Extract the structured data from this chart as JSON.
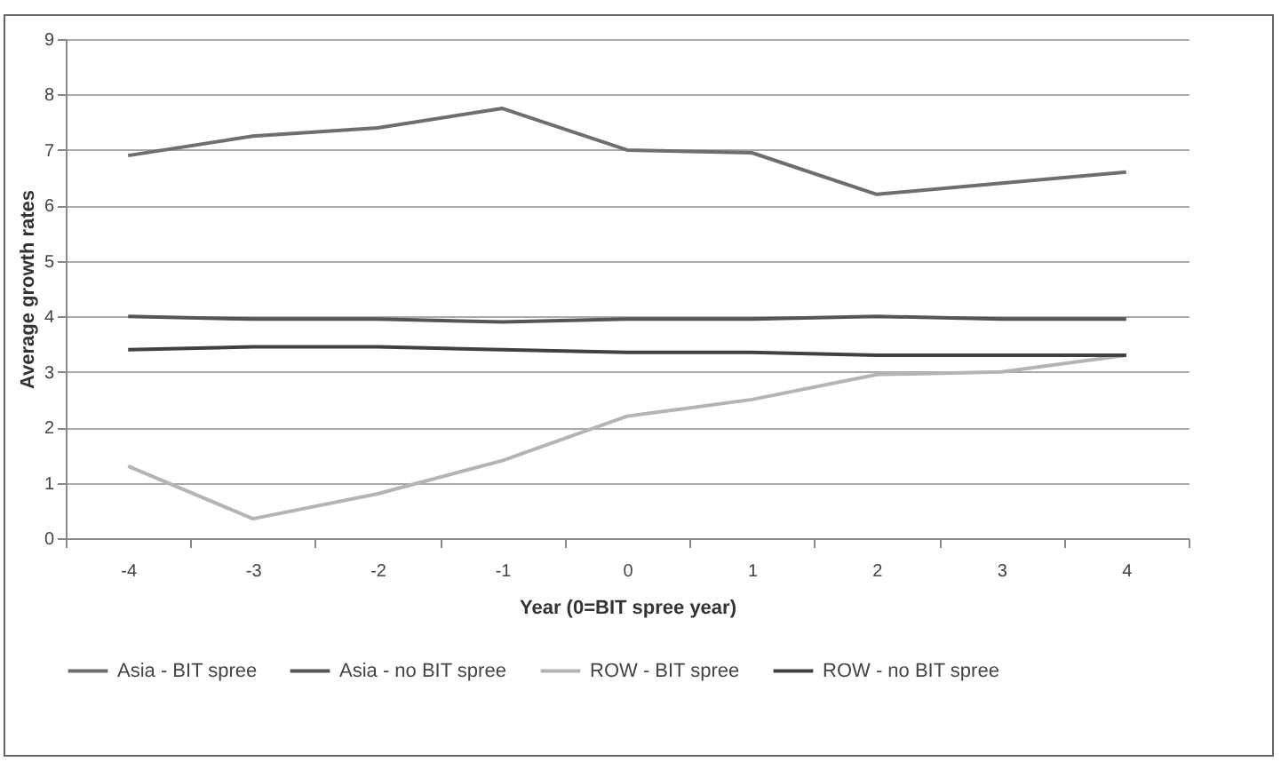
{
  "chart_data": {
    "type": "line",
    "xlabel": "Year (0=BIT spree year)",
    "ylabel": "Average growth rates",
    "categories": [
      "-4",
      "-3",
      "-2",
      "-1",
      "0",
      "1",
      "2",
      "3",
      "4"
    ],
    "series": [
      {
        "name": "Asia - BIT spree",
        "color": "#6e6e6e",
        "values": [
          6.9,
          7.25,
          7.4,
          7.75,
          7.0,
          6.95,
          6.2,
          6.4,
          6.6
        ]
      },
      {
        "name": "Asia - no BIT spree",
        "color": "#555555",
        "values": [
          4.0,
          3.95,
          3.95,
          3.9,
          3.95,
          3.95,
          4.0,
          3.95,
          3.95
        ]
      },
      {
        "name": "ROW - BIT spree",
        "color": "#b4b4b4",
        "values": [
          1.3,
          0.35,
          0.8,
          1.4,
          2.2,
          2.5,
          2.95,
          3.0,
          3.3
        ]
      },
      {
        "name": "ROW - no BIT spree",
        "color": "#404040",
        "values": [
          3.4,
          3.45,
          3.45,
          3.4,
          3.35,
          3.35,
          3.3,
          3.3,
          3.3
        ]
      }
    ],
    "ylim": [
      0,
      9
    ],
    "yticks": [
      0,
      1,
      2,
      3,
      4,
      5,
      6,
      7,
      8,
      9
    ],
    "grid": "y",
    "legend": "bottom",
    "marker": "none",
    "line_style": "solid"
  }
}
